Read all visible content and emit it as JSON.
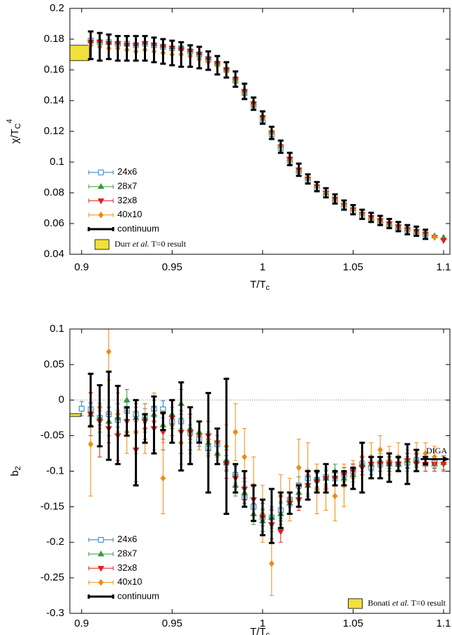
{
  "chart_data": [
    {
      "type": "scatter",
      "ylabel": "χ/T",
      "ylabel_sub": "C",
      "ylabel_sup": "4",
      "xlabel": "T/T",
      "xlabel_sub": "c",
      "xlim": [
        0.8935,
        1.1035
      ],
      "xticks": [
        0.9,
        0.95,
        1,
        1.05,
        1.1
      ],
      "ylim": [
        0.04,
        0.2
      ],
      "yticks": [
        0.04,
        0.06,
        0.08,
        0.1,
        0.12,
        0.14,
        0.16,
        0.18,
        0.2
      ],
      "legend": "lower left",
      "x": [
        0.9,
        0.905,
        0.91,
        0.915,
        0.92,
        0.925,
        0.93,
        0.935,
        0.94,
        0.945,
        0.95,
        0.955,
        0.96,
        0.965,
        0.97,
        0.975,
        0.98,
        0.985,
        0.99,
        0.995,
        1,
        1.005,
        1.01,
        1.015,
        1.02,
        1.025,
        1.03,
        1.035,
        1.04,
        1.045,
        1.05,
        1.055,
        1.06,
        1.065,
        1.07,
        1.075,
        1.08,
        1.085,
        1.09,
        1.095,
        1.1
      ],
      "series": [
        {
          "name": "24x6",
          "color": "#2b7bba",
          "marker": "square",
          "values": [
            null,
            0.179,
            0.178,
            0.178,
            0.177,
            0.177,
            0.176,
            0.177,
            0.176,
            0.175,
            0.174,
            0.174,
            0.172,
            0.17,
            0.167,
            0.164,
            0.16,
            0.153,
            0.145,
            0.137,
            0.126,
            0.118,
            0.109,
            0.101,
            0.094,
            0.088,
            0.083,
            0.079,
            0.075,
            0.071,
            0.068,
            0.065,
            0.063,
            0.061,
            0.059,
            0.057,
            0.056,
            0.054,
            0.053,
            null,
            null
          ]
        },
        {
          "name": "28x7",
          "color": "#3a9a3a",
          "marker": "triangle-up",
          "values": [
            null,
            0.179,
            0.179,
            0.178,
            0.178,
            0.177,
            0.177,
            0.178,
            0.177,
            0.176,
            0.175,
            0.175,
            0.173,
            0.171,
            0.168,
            0.165,
            0.161,
            0.155,
            0.147,
            0.139,
            0.13,
            0.12,
            0.111,
            0.102,
            0.095,
            0.09,
            0.085,
            0.08,
            0.076,
            0.073,
            0.07,
            0.067,
            0.064,
            0.062,
            0.06,
            0.058,
            0.057,
            0.055,
            0.054,
            0.052,
            0.051
          ]
        },
        {
          "name": "32x8",
          "color": "#e02020",
          "marker": "triangle-down",
          "values": [
            null,
            0.178,
            0.178,
            0.177,
            0.177,
            0.176,
            0.176,
            0.177,
            0.176,
            0.175,
            0.174,
            0.173,
            0.172,
            0.17,
            0.167,
            0.164,
            0.16,
            0.154,
            0.146,
            0.138,
            0.129,
            0.119,
            0.11,
            0.102,
            0.095,
            0.089,
            0.084,
            0.08,
            0.076,
            0.072,
            0.069,
            0.066,
            0.064,
            0.062,
            0.06,
            0.058,
            0.056,
            0.055,
            0.053,
            0.051,
            0.049
          ]
        },
        {
          "name": "40x10",
          "color": "#f08a10",
          "marker": "diamond",
          "values": [
            null,
            0.176,
            0.175,
            0.174,
            0.174,
            0.173,
            0.172,
            0.173,
            0.172,
            0.171,
            0.17,
            0.17,
            0.169,
            0.167,
            0.165,
            0.163,
            0.159,
            0.153,
            0.145,
            0.137,
            0.128,
            0.119,
            0.11,
            0.101,
            0.094,
            0.089,
            0.084,
            0.08,
            0.075,
            0.072,
            0.069,
            0.066,
            0.063,
            0.061,
            0.059,
            0.057,
            0.056,
            0.054,
            0.053,
            0.051,
            null
          ]
        },
        {
          "name": "continuum",
          "color": "#000000",
          "marker": "none",
          "values": [
            null,
            0.176,
            0.175,
            0.175,
            0.174,
            0.174,
            0.174,
            0.174,
            0.173,
            0.172,
            0.171,
            0.17,
            0.169,
            0.168,
            0.166,
            0.163,
            0.16,
            0.154,
            0.146,
            0.138,
            0.129,
            0.119,
            0.11,
            0.102,
            0.095,
            0.089,
            0.084,
            0.08,
            0.076,
            0.072,
            0.069,
            0.066,
            0.064,
            0.062,
            0.06,
            0.058,
            0.056,
            0.055,
            0.053,
            null,
            null
          ],
          "errors": [
            null,
            0.009,
            0.009,
            0.008,
            0.008,
            0.008,
            0.008,
            0.008,
            0.008,
            0.008,
            0.008,
            0.008,
            0.007,
            0.007,
            0.006,
            0.006,
            0.005,
            0.005,
            0.005,
            0.004,
            0.004,
            0.004,
            0.004,
            0.004,
            0.004,
            0.003,
            0.003,
            0.003,
            0.003,
            0.003,
            0.003,
            0.003,
            0.003,
            0.003,
            0.003,
            0.003,
            0.003,
            0.003,
            0.003,
            null,
            null
          ]
        }
      ],
      "reference": {
        "name_parts": [
          "Durr ",
          "et al.",
          " T=0 result"
        ],
        "low": 0.166,
        "high": 0.176,
        "color": "#f2e03c",
        "legend": "lower left"
      }
    },
    {
      "type": "scatter",
      "ylabel": "b",
      "ylabel_sub": "2",
      "xlabel": "T/T",
      "xlabel_sub": "c",
      "xlim": [
        0.8935,
        1.1035
      ],
      "xticks": [
        0.9,
        0.95,
        1,
        1.05,
        1.1
      ],
      "ylim": [
        -0.3,
        0.1
      ],
      "yticks": [
        -0.3,
        -0.25,
        -0.2,
        -0.15,
        -0.1,
        -0.05,
        0,
        0.05,
        0.1
      ],
      "legend": "lower left",
      "x": [
        0.9,
        0.905,
        0.91,
        0.915,
        0.92,
        0.925,
        0.93,
        0.935,
        0.94,
        0.945,
        0.95,
        0.955,
        0.96,
        0.965,
        0.97,
        0.975,
        0.98,
        0.985,
        0.99,
        0.995,
        1,
        1.005,
        1.01,
        1.015,
        1.02,
        1.025,
        1.03,
        1.035,
        1.04,
        1.045,
        1.05,
        1.055,
        1.06,
        1.065,
        1.07,
        1.075,
        1.08,
        1.085,
        1.09,
        1.095,
        1.1
      ],
      "series": [
        {
          "name": "24x6",
          "color": "#2b7bba",
          "marker": "square",
          "values": [
            -0.012,
            -0.013,
            -0.025,
            -0.02,
            -0.028,
            -0.015,
            -0.02,
            -0.022,
            -0.012,
            -0.013,
            -0.03,
            -0.03,
            -0.045,
            -0.055,
            -0.068,
            -0.062,
            -0.088,
            -0.105,
            -0.137,
            -0.15,
            -0.165,
            -0.165,
            -0.155,
            -0.14,
            -0.12,
            -0.11,
            -0.112,
            -0.108,
            -0.11,
            -0.105,
            -0.1,
            -0.09,
            -0.095,
            -0.09,
            -0.088,
            -0.09,
            -0.088,
            -0.085,
            null,
            -0.088,
            null
          ],
          "errors": [
            0.01,
            0.01,
            0.01,
            0.01,
            0.01,
            0.012,
            0.01,
            0.01,
            0.012,
            0.012,
            0.01,
            0.01,
            0.01,
            0.01,
            0.01,
            0.012,
            0.01,
            0.012,
            0.012,
            0.012,
            0.012,
            0.012,
            0.012,
            0.01,
            0.012,
            0.01,
            0.01,
            0.01,
            0.01,
            0.01,
            0.01,
            0.01,
            0.01,
            0.01,
            0.008,
            0.008,
            0.008,
            0.008,
            null,
            0.008,
            null
          ]
        },
        {
          "name": "28x7",
          "color": "#3a9a3a",
          "marker": "triangle-up",
          "values": [
            null,
            -0.02,
            -0.025,
            -0.03,
            -0.025,
            0,
            -0.025,
            -0.025,
            -0.02,
            -0.035,
            -0.02,
            -0.005,
            -0.04,
            -0.045,
            -0.06,
            -0.075,
            -0.085,
            -0.12,
            -0.13,
            -0.16,
            -0.17,
            -0.165,
            -0.16,
            -0.145,
            -0.13,
            -0.12,
            -0.11,
            -0.11,
            -0.1,
            -0.11,
            -0.105,
            -0.09,
            -0.09,
            -0.085,
            -0.09,
            -0.09,
            -0.085,
            -0.085,
            -0.09,
            -0.09,
            -0.088
          ],
          "errors": [
            null,
            0.015,
            0.02,
            0.02,
            0.02,
            0.015,
            0.02,
            0.02,
            0.02,
            0.02,
            0.02,
            0.02,
            0.02,
            0.015,
            0.015,
            0.015,
            0.015,
            0.015,
            0.015,
            0.015,
            0.015,
            0.015,
            0.015,
            0.015,
            0.012,
            0.012,
            0.012,
            0.01,
            0.01,
            0.01,
            0.01,
            0.01,
            0.01,
            0.01,
            0.01,
            0.01,
            0.01,
            0.01,
            0.01,
            0.01,
            0.01
          ]
        },
        {
          "name": "32x8",
          "color": "#e02020",
          "marker": "triangle-down",
          "values": [
            null,
            -0.02,
            -0.03,
            -0.04,
            -0.05,
            -0.03,
            -0.07,
            -0.03,
            -0.04,
            -0.045,
            -0.025,
            -0.045,
            -0.045,
            -0.05,
            -0.05,
            -0.06,
            -0.09,
            -0.11,
            -0.125,
            -0.14,
            -0.165,
            -0.175,
            -0.185,
            -0.145,
            -0.14,
            -0.12,
            -0.115,
            -0.11,
            -0.11,
            -0.105,
            -0.1,
            -0.095,
            -0.09,
            -0.09,
            -0.09,
            -0.09,
            -0.085,
            -0.09,
            -0.09,
            -0.09,
            -0.09
          ],
          "errors": [
            null,
            0.03,
            0.05,
            0.02,
            0.035,
            0.02,
            0.045,
            0.025,
            0.03,
            0.025,
            0.025,
            0.03,
            0.025,
            0.02,
            0.02,
            0.02,
            0.02,
            0.02,
            0.015,
            0.02,
            0.02,
            0.02,
            0.015,
            0.015,
            0.015,
            0.015,
            0.012,
            0.012,
            0.01,
            0.01,
            0.01,
            0.01,
            0.01,
            0.01,
            0.01,
            0.01,
            0.01,
            0.01,
            0.01,
            0.01,
            0.01
          ]
        },
        {
          "name": "40x10",
          "color": "#f08a10",
          "marker": "diamond",
          "values": [
            null,
            -0.062,
            -0.01,
            0.068,
            -0.02,
            -0.045,
            -0.045,
            -0.04,
            -0.03,
            -0.11,
            -0.035,
            -0.06,
            -0.05,
            -0.05,
            -0.055,
            -0.06,
            -0.065,
            -0.045,
            -0.08,
            -0.12,
            -0.16,
            -0.23,
            -0.135,
            -0.14,
            -0.095,
            -0.1,
            -0.125,
            -0.125,
            -0.135,
            -0.12,
            -0.105,
            -0.08,
            -0.08,
            -0.07,
            -0.085,
            -0.08,
            -0.085,
            -0.075,
            -0.075,
            -0.08,
            null
          ],
          "errors": [
            null,
            0.073,
            0.03,
            0.04,
            0.03,
            0.03,
            0.03,
            0.035,
            0.04,
            0.05,
            0.025,
            0.03,
            0.025,
            0.02,
            0.025,
            0.02,
            0.03,
            0.04,
            0.04,
            0.04,
            0.04,
            0.045,
            0.03,
            0.03,
            0.04,
            0.04,
            0.035,
            0.03,
            0.035,
            0.03,
            0.02,
            0.02,
            0.02,
            0.02,
            0.02,
            0.02,
            0.015,
            0.015,
            0.015,
            0.015,
            null
          ]
        },
        {
          "name": "continuum",
          "color": "#000000",
          "marker": "none",
          "values": [
            null,
            0,
            -0.022,
            -0.022,
            -0.035,
            -0.03,
            -0.06,
            -0.04,
            -0.035,
            -0.03,
            -0.03,
            -0.037,
            -0.05,
            -0.045,
            -0.06,
            -0.065,
            -0.065,
            -0.11,
            -0.125,
            -0.145,
            -0.165,
            -0.163,
            -0.155,
            -0.145,
            -0.135,
            -0.12,
            -0.115,
            -0.11,
            -0.11,
            -0.11,
            -0.11,
            -0.095,
            -0.095,
            -0.095,
            -0.095,
            -0.09,
            -0.09,
            -0.085,
            -0.085,
            null,
            null
          ],
          "errors": [
            null,
            0.037,
            0.043,
            0.062,
            0.055,
            0.02,
            0.06,
            0.02,
            0.04,
            0.012,
            0.03,
            0.062,
            0.04,
            0.015,
            0.07,
            0.025,
            0.095,
            0.02,
            0.025,
            0.025,
            0.025,
            0.038,
            0.025,
            0.015,
            0.015,
            0.02,
            0.015,
            0.02,
            0.01,
            0.01,
            0.015,
            0.035,
            0.015,
            0.015,
            0.02,
            0.01,
            0.028,
            0.015,
            0.005,
            null,
            null
          ]
        }
      ],
      "reference": {
        "name_parts": [
          "Bonati ",
          "et al.",
          " T=0 result"
        ],
        "low": -0.023,
        "high": -0.019,
        "color": "#f2e03c",
        "legend": "lower right"
      },
      "arrow": {
        "label": "DIGA",
        "value": -0.083
      }
    }
  ]
}
